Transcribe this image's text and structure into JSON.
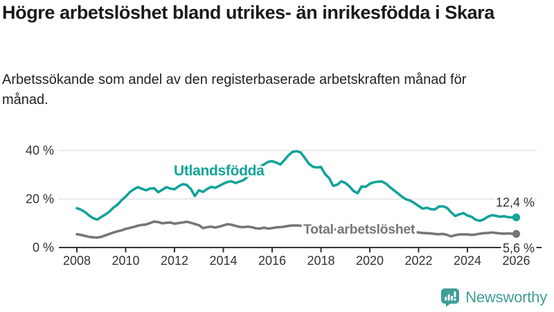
{
  "header": {
    "title": "Högre arbetslöshet bland utrikes- än inrikesfödda i Skara",
    "subtitle": "Arbetssökande som andel av den registerbaserade arbetskraften månad för månad."
  },
  "chart_data": {
    "type": "line",
    "title": "Högre arbetslöshet bland utrikes- än inrikesfödda i Skara",
    "subtitle": "Arbetssökande som andel av den registerbaserade arbetskraften månad för månad.",
    "xlabel": "",
    "ylabel": "",
    "x_start_year": 2008,
    "x_interval_years": 0.166667,
    "x_ticks": [
      2008,
      2010,
      2012,
      2014,
      2016,
      2018,
      2020,
      2022,
      2024,
      2026
    ],
    "y_ticks": [
      0,
      20,
      40
    ],
    "y_tick_labels": [
      "0 %",
      "20 %",
      "40 %"
    ],
    "ylim": [
      0,
      45
    ],
    "xlim": [
      2007.3,
      2026.9
    ],
    "grid": true,
    "legend_position": "inline-labels",
    "axis_color": "#333333",
    "grid_color": "#dcdcdc",
    "series": [
      {
        "name": "Utlandsfödda",
        "color": "#12a39a",
        "end_label": "12,4 %",
        "end_value": 12.4,
        "values": [
          16.2,
          15.6,
          14.6,
          13.2,
          12.1,
          11.5,
          12.6,
          13.6,
          14.8,
          16.5,
          17.7,
          19.5,
          21.0,
          22.8,
          24.0,
          24.9,
          24.2,
          23.6,
          24.3,
          24.4,
          22.8,
          23.8,
          24.9,
          24.3,
          24.0,
          25.2,
          26.1,
          25.8,
          24.2,
          21.2,
          23.6,
          22.9,
          24.1,
          25.0,
          24.6,
          25.4,
          26.3,
          27.0,
          27.3,
          26.6,
          27.2,
          27.8,
          29.3,
          30.8,
          32.0,
          33.2,
          34.3,
          35.3,
          35.6,
          35.0,
          34.2,
          36.0,
          38.0,
          39.4,
          39.7,
          39.2,
          37.0,
          34.6,
          33.3,
          33.0,
          33.2,
          30.3,
          28.6,
          25.4,
          25.9,
          27.3,
          26.6,
          25.2,
          23.3,
          22.4,
          25.2,
          25.0,
          26.3,
          26.9,
          27.1,
          27.2,
          26.3,
          24.8,
          23.5,
          22.2,
          20.8,
          19.8,
          19.3,
          18.3,
          17.1,
          16.0,
          16.4,
          15.8,
          15.7,
          16.9,
          17.0,
          16.3,
          14.5,
          13.0,
          13.7,
          14.2,
          13.2,
          12.7,
          11.5,
          11.0,
          11.6,
          12.7,
          13.3,
          13.1,
          12.7,
          12.9,
          12.5,
          12.4,
          12.4
        ]
      },
      {
        "name": "Total arbetslöshet",
        "color": "#767676",
        "end_label": "5,6 %",
        "end_value": 5.6,
        "values": [
          5.5,
          5.2,
          4.8,
          4.4,
          4.2,
          4.1,
          4.4,
          5.0,
          5.6,
          6.2,
          6.7,
          7.1,
          7.7,
          8.1,
          8.5,
          9.0,
          9.3,
          9.5,
          10.1,
          10.7,
          10.5,
          10.0,
          10.2,
          10.3,
          9.8,
          10.1,
          10.3,
          10.6,
          10.2,
          9.7,
          9.2,
          8.0,
          8.4,
          8.6,
          8.2,
          8.6,
          9.1,
          9.6,
          9.4,
          8.9,
          8.5,
          8.4,
          8.6,
          8.4,
          7.9,
          7.8,
          8.2,
          7.8,
          8.0,
          8.3,
          8.4,
          8.6,
          8.9,
          9.1,
          9.1,
          9.0,
          8.8,
          8.6,
          8.4,
          8.2,
          8.0,
          7.8,
          7.6,
          7.5,
          7.4,
          7.3,
          7.2,
          7.1,
          7.0,
          6.9,
          7.0,
          7.2,
          7.5,
          7.8,
          8.0,
          7.9,
          7.8,
          7.6,
          7.4,
          7.2,
          7.0,
          6.8,
          6.6,
          6.4,
          6.2,
          6.0,
          5.9,
          5.8,
          5.6,
          5.5,
          5.6,
          5.2,
          4.6,
          5.1,
          5.4,
          5.4,
          5.4,
          5.2,
          5.4,
          5.7,
          5.9,
          6.0,
          6.2,
          6.0,
          5.8,
          5.7,
          5.8,
          5.7,
          5.6
        ]
      }
    ]
  },
  "footer": {
    "brand": "Newsworthy",
    "brand_color": "#3f9d96",
    "logo_icon": "newsworthy-speech-bubble-chart-icon"
  }
}
